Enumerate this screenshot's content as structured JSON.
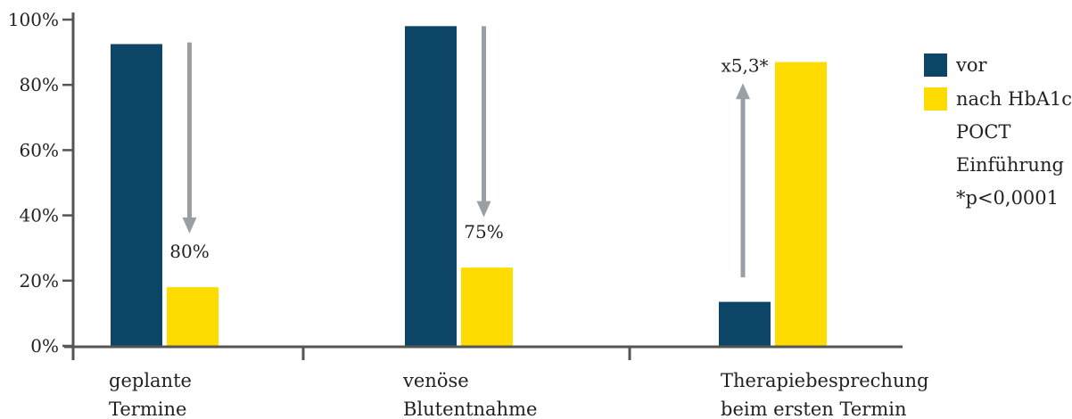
{
  "chart_data": {
    "type": "bar",
    "categories": [
      [
        "geplante",
        "Termine"
      ],
      [
        "venöse",
        "Blutentnahme"
      ],
      [
        "Therapiebesprechung",
        "beim ersten Termin"
      ]
    ],
    "series": [
      {
        "name": "vor",
        "color": "#0d4566",
        "values": [
          92.5,
          98,
          13.5
        ]
      },
      {
        "name": "nach HbA1c POCT Einführung",
        "color": "#ffdc00",
        "values": [
          18,
          24,
          87
        ]
      }
    ],
    "legend_lines": [
      "nach HbA1c",
      "POCT",
      "Einführung",
      "*p<0,0001"
    ],
    "y_ticks": [
      "0%",
      "20%",
      "40%",
      "60%",
      "80%",
      "100%"
    ],
    "ylim": [
      0,
      100
    ],
    "annotations": [
      {
        "category": 0,
        "text": "80%",
        "arrow_from": 93,
        "arrow_to": 35,
        "direction": "down",
        "label_value": 27
      },
      {
        "category": 1,
        "text": "75%",
        "arrow_from": 98,
        "arrow_to": 40,
        "direction": "down",
        "label_value": 33
      },
      {
        "category": 2,
        "text": "x5,3*",
        "arrow_from": 21,
        "arrow_to": 80,
        "direction": "up",
        "label_value": 84
      }
    ],
    "legend_position": "top-right",
    "arrow_color": "#9a9fa3",
    "axis_color": "#555555"
  }
}
